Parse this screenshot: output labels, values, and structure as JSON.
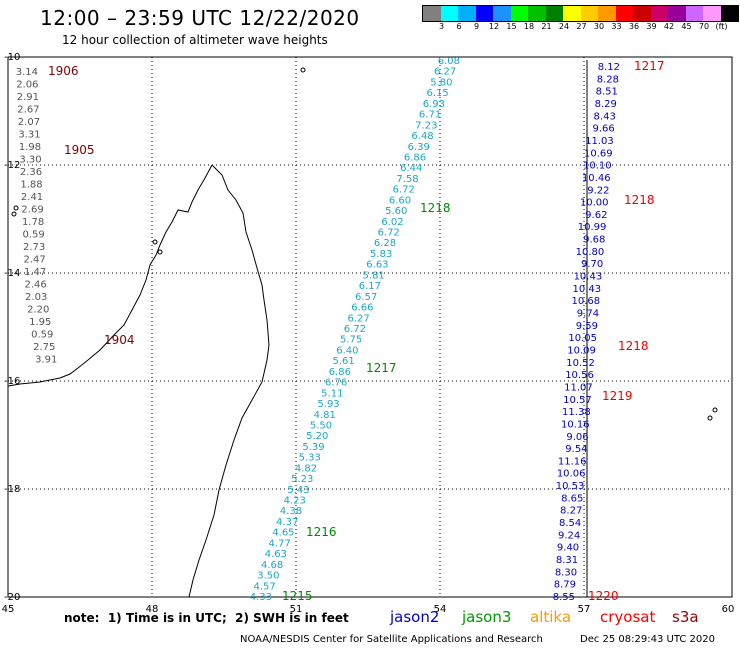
{
  "header": {
    "title": "12:00 – 23:59 UTC 12/22/2020",
    "subtitle": "12 hour collection of altimeter wave heights"
  },
  "legend": {
    "colors": [
      "#808080",
      "#00ffff",
      "#00b0ff",
      "#0000ff",
      "#1e90ff",
      "#00ff00",
      "#00c000",
      "#008000",
      "#ffff00",
      "#ffcc00",
      "#ff9900",
      "#ff0000",
      "#cc0000",
      "#cc0066",
      "#990099",
      "#cc66ff",
      "#ff99ff",
      "#000000"
    ],
    "labels": [
      "3",
      "6",
      "9",
      "12",
      "15",
      "18",
      "21",
      "24",
      "27",
      "30",
      "33",
      "36",
      "39",
      "42",
      "45",
      "70",
      "(ft)"
    ]
  },
  "axes": {
    "x_ticks": [
      "45",
      "48",
      "51",
      "54",
      "57",
      "60"
    ],
    "y_ticks": [
      "-10",
      "-12",
      "-14",
      "-16",
      "-18",
      "-20"
    ]
  },
  "tracks": {
    "gray_track": {
      "color": "#555555",
      "values": [
        "3.14",
        "2.06",
        "2.91",
        "2.67",
        "2.07",
        "3.31",
        "1.98",
        "3.30",
        "2.36",
        "1.88",
        "2.41",
        "2.69",
        "1.78",
        "0.59",
        "2.73",
        "2.47",
        "1.47",
        "2.46",
        "2.03",
        "2.20",
        "1.95",
        "0.59",
        "2.75",
        "3.91"
      ]
    },
    "cyan_track": {
      "color": "#1aa6c8",
      "values": [
        "6.08",
        "6.27",
        "5.80",
        "6.15",
        "6.93",
        "6.71",
        "7.23",
        "6.48",
        "6.39",
        "6.86",
        "6.44",
        "7.58",
        "6.72",
        "6.60",
        "5.60",
        "6.02",
        "6.72",
        "6.28",
        "5.83",
        "6.63",
        "5.81",
        "6.17",
        "6.57",
        "6.66",
        "6.27",
        "6.72",
        "5.75",
        "6.40",
        "5.61",
        "6.86",
        "6.76",
        "5.11",
        "5.93",
        "4.81",
        "5.50",
        "5.20",
        "5.39",
        "5.33",
        "4.82",
        "5.23",
        "5.43",
        "4.23",
        "4.38",
        "4.37",
        "4.65",
        "4.77",
        "4.63",
        "4.68",
        "3.50",
        "4.57",
        "4.33"
      ]
    },
    "blue_track": {
      "color": "#0000cc",
      "values": [
        "8.12",
        "8.28",
        "8.51",
        "8.29",
        "8.43",
        "9.66",
        "11.03",
        "10.69",
        "10.10",
        "10.46",
        "9.22",
        "10.00",
        "9.62",
        "10.99",
        "9.68",
        "10.80",
        "9.70",
        "10.43",
        "10.43",
        "10.68",
        "9.74",
        "9.59",
        "10.05",
        "10.09",
        "10.52",
        "10.56",
        "11.07",
        "10.57",
        "11.38",
        "10.16",
        "9.06",
        "9.54",
        "11.16",
        "10.06",
        "10.53",
        "8.65",
        "8.27",
        "8.54",
        "9.24",
        "9.40",
        "8.31",
        "8.30",
        "8.79",
        "8.55"
      ]
    }
  },
  "pass_times": {
    "maroon": [
      "1906",
      "1905",
      "1904"
    ],
    "green": [
      "1218",
      "1217",
      "1216",
      "1215"
    ],
    "red": [
      "1217",
      "1218",
      "1218",
      "1219",
      "1220"
    ]
  },
  "footer": {
    "note": "note:  1) Time is in UTC;  2) SWH is in feet",
    "satellites": [
      {
        "name": "jason2",
        "color": "#0000cc"
      },
      {
        "name": "jason3",
        "color": "#009900"
      },
      {
        "name": "altika",
        "color": "#ff9900"
      },
      {
        "name": "cryosat",
        "color": "#ff0000"
      },
      {
        "name": "s3a",
        "color": "#990000"
      }
    ],
    "credit": "NOAA/NESDIS Center for Satellite Applications and Research",
    "stamp": "Dec 25 08:29:43 UTC 2020"
  }
}
